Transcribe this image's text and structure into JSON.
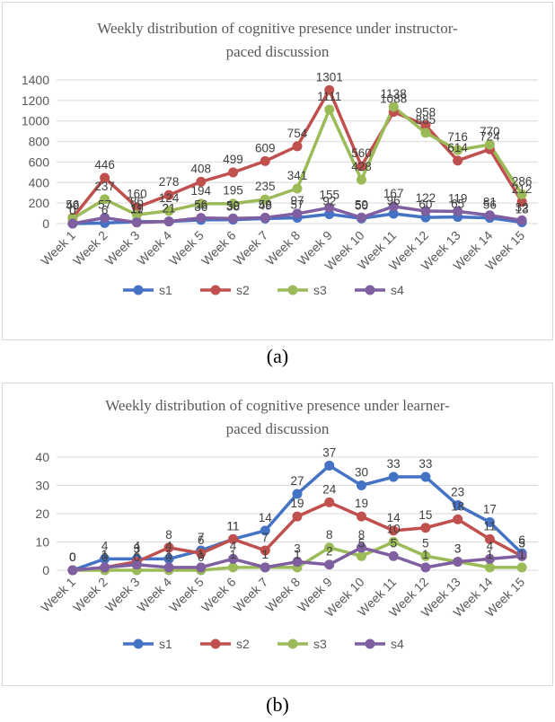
{
  "chart_data": [
    {
      "type": "line",
      "title_lines": [
        "Weekly distribution of cognitive presence under instructor-",
        "paced discussion"
      ],
      "categories": [
        "Week 1",
        "Week 2",
        "Week 3",
        "Week 4",
        "Week 5",
        "Week 6",
        "Week 7",
        "Week 8",
        "Week 9",
        "Week 10",
        "Week 11",
        "Week 12",
        "Week 13",
        "Week 14",
        "Week 15"
      ],
      "ylim": [
        0,
        1400
      ],
      "yticks": [
        0,
        200,
        400,
        600,
        800,
        1000,
        1200,
        1400
      ],
      "grid": true,
      "legend_position": "bottom",
      "series": [
        {
          "name": "s1",
          "color": "#4472c4",
          "values": [
            0,
            6,
            19,
            21,
            36,
            38,
            49,
            57,
            92,
            50,
            96,
            60,
            65,
            56,
            13
          ]
        },
        {
          "name": "s2",
          "color": "#c0504d",
          "values": [
            56,
            446,
            160,
            278,
            408,
            499,
            609,
            754,
            1301,
            560,
            1088,
            958,
            614,
            724,
            212
          ]
        },
        {
          "name": "s3",
          "color": "#9bbb59",
          "values": [
            49,
            237,
            86,
            124,
            194,
            195,
            235,
            341,
            1111,
            428,
            1138,
            885,
            716,
            770,
            286
          ]
        },
        {
          "name": "s4",
          "color": "#7f5fa0",
          "values": [
            0,
            57,
            11,
            21,
            56,
            50,
            58,
            97,
            155,
            59,
            167,
            122,
            119,
            81,
            32
          ]
        }
      ]
    },
    {
      "type": "line",
      "title_lines": [
        "Weekly distribution of cognitive presence under learner-",
        "paced discussion"
      ],
      "categories": [
        "Week 1",
        "Week 2",
        "Week 3",
        "Week 4",
        "Week 5",
        "Week 6",
        "Week 7",
        "Week 8",
        "Week 9",
        "Week 10",
        "Week 11",
        "Week 12",
        "Week 13",
        "Week 14",
        "Week 15"
      ],
      "ylim": [
        0,
        40
      ],
      "yticks": [
        0,
        10,
        20,
        30,
        40
      ],
      "grid": true,
      "legend_position": "bottom",
      "series": [
        {
          "name": "s1",
          "color": "#4472c4",
          "values": [
            0,
            4,
            4,
            4,
            7,
            11,
            14,
            27,
            37,
            30,
            33,
            33,
            23,
            17,
            6
          ]
        },
        {
          "name": "s2",
          "color": "#c0504d",
          "values": [
            0,
            1,
            3,
            8,
            6,
            11,
            7,
            19,
            24,
            19,
            14,
            15,
            18,
            11,
            5
          ]
        },
        {
          "name": "s3",
          "color": "#9bbb59",
          "values": [
            0,
            0,
            0,
            0,
            0,
            1,
            1,
            1,
            8,
            5,
            10,
            5,
            3,
            1,
            1
          ]
        },
        {
          "name": "s4",
          "color": "#7f5fa0",
          "values": [
            0,
            1,
            2,
            1,
            1,
            4,
            1,
            3,
            2,
            8,
            5,
            1,
            3,
            4,
            5
          ]
        }
      ]
    }
  ],
  "captions": {
    "a": "(a)",
    "b": "(b)"
  }
}
